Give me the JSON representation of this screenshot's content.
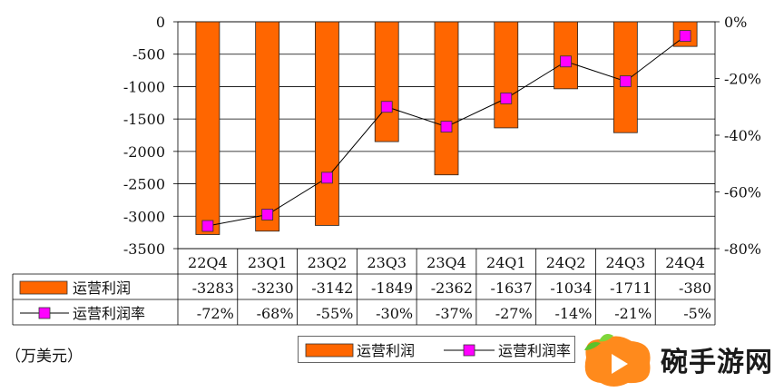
{
  "chart_data": {
    "type": "bar",
    "categories": [
      "22Q4",
      "23Q1",
      "23Q2",
      "23Q3",
      "23Q4",
      "24Q1",
      "24Q2",
      "24Q3",
      "24Q4"
    ],
    "series": [
      {
        "name": "运营利润",
        "type": "bar",
        "axis": "left",
        "color": "#ff6600",
        "values": [
          -3283,
          -3230,
          -3142,
          -1849,
          -2362,
          -1637,
          -1034,
          -1711,
          -380
        ],
        "table_labels": [
          "-3283",
          "-3230",
          "-3142",
          "-1849",
          "-2362",
          "-1637",
          "-1034",
          "-1711",
          "-380"
        ]
      },
      {
        "name": "运营利润率",
        "type": "line",
        "axis": "right",
        "color": "#ff00ff",
        "values": [
          -72,
          -68,
          -55,
          -30,
          -37,
          -27,
          -14,
          -21,
          -5
        ],
        "table_labels": [
          "-72%",
          "-68%",
          "-55%",
          "-30%",
          "-37%",
          "-27%",
          "-14%",
          "-21%",
          "-5%"
        ]
      }
    ],
    "left_axis": {
      "ylim": [
        -3500,
        0
      ],
      "ticks": [
        "0",
        "-500",
        "-1000",
        "-1500",
        "-2000",
        "-2500",
        "-3000",
        "-3500"
      ]
    },
    "right_axis": {
      "ylim": [
        -80,
        0
      ],
      "ticks": [
        "0%",
        "-20%",
        "-40%",
        "-60%",
        "-80%"
      ]
    },
    "grid": true,
    "data_table": true,
    "legend_placement": "bottom"
  },
  "unit_note": "（万美元）",
  "legend": {
    "bar_label": "运营利润",
    "line_label": "运营利润率"
  },
  "watermark": {
    "text": "碗手游网"
  }
}
